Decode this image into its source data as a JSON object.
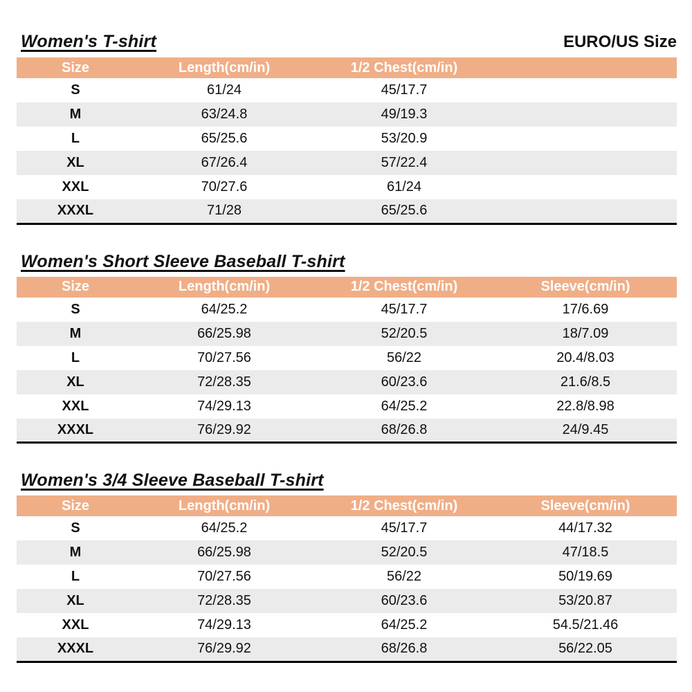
{
  "page": {
    "size_standard_label": "EURO/US Size"
  },
  "colors": {
    "header_bg": "#F0AE87",
    "header_text": "#FFFFFF",
    "stripe_bg": "#EBEBEB",
    "border": "#000000",
    "text": "#111111"
  },
  "tables": [
    {
      "title": "Women's T-shirt",
      "columns": [
        "Size",
        "Length(cm/in)",
        "1/2 Chest(cm/in)",
        ""
      ],
      "rows": [
        [
          "S",
          "61/24",
          "45/17.7",
          ""
        ],
        [
          "M",
          "63/24.8",
          "49/19.3",
          ""
        ],
        [
          "L",
          "65/25.6",
          "53/20.9",
          ""
        ],
        [
          "XL",
          "67/26.4",
          "57/22.4",
          ""
        ],
        [
          "XXL",
          "70/27.6",
          "61/24",
          ""
        ],
        [
          "XXXL",
          "71/28",
          "65/25.6",
          ""
        ]
      ]
    },
    {
      "title": "Women's Short Sleeve Baseball T-shirt",
      "columns": [
        "Size",
        "Length(cm/in)",
        "1/2 Chest(cm/in)",
        "Sleeve(cm/in)"
      ],
      "rows": [
        [
          "S",
          "64/25.2",
          "45/17.7",
          "17/6.69"
        ],
        [
          "M",
          "66/25.98",
          "52/20.5",
          "18/7.09"
        ],
        [
          "L",
          "70/27.56",
          "56/22",
          "20.4/8.03"
        ],
        [
          "XL",
          "72/28.35",
          "60/23.6",
          "21.6/8.5"
        ],
        [
          "XXL",
          "74/29.13",
          "64/25.2",
          "22.8/8.98"
        ],
        [
          "XXXL",
          "76/29.92",
          "68/26.8",
          "24/9.45"
        ]
      ]
    },
    {
      "title": "Women's 3/4 Sleeve Baseball T-shirt",
      "columns": [
        "Size",
        "Length(cm/in)",
        "1/2 Chest(cm/in)",
        "Sleeve(cm/in)"
      ],
      "rows": [
        [
          "S",
          "64/25.2",
          "45/17.7",
          "44/17.32"
        ],
        [
          "M",
          "66/25.98",
          "52/20.5",
          "47/18.5"
        ],
        [
          "L",
          "70/27.56",
          "56/22",
          "50/19.69"
        ],
        [
          "XL",
          "72/28.35",
          "60/23.6",
          "53/20.87"
        ],
        [
          "XXL",
          "74/29.13",
          "64/25.2",
          "54.5/21.46"
        ],
        [
          "XXXL",
          "76/29.92",
          "68/26.8",
          "56/22.05"
        ]
      ]
    }
  ]
}
